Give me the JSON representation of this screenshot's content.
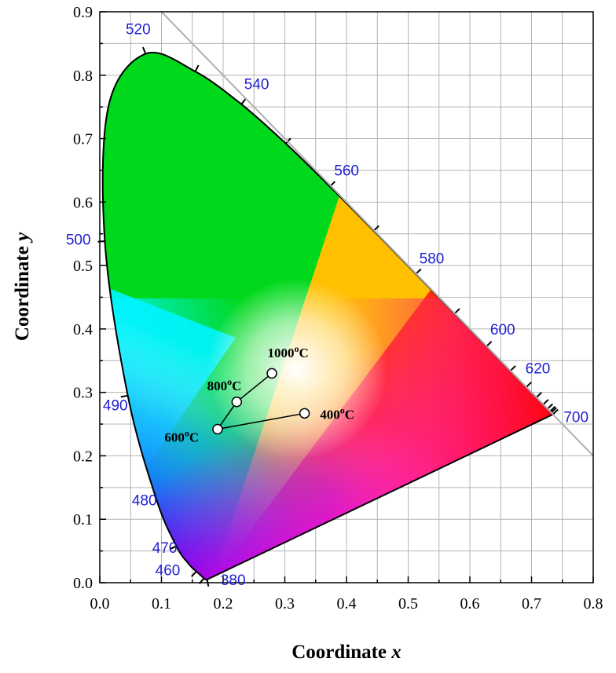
{
  "chart_data": {
    "type": "scatter",
    "title": "",
    "xlabel": "Coordinate",
    "xlabel_var": "x",
    "ylabel": "Coordinate",
    "ylabel_var": "y",
    "xlim": [
      0.0,
      0.8
    ],
    "ylim": [
      0.0,
      0.9
    ],
    "xticks": [
      "0.0",
      "0.1",
      "0.2",
      "0.3",
      "0.4",
      "0.5",
      "0.6",
      "0.7",
      "0.8"
    ],
    "yticks": [
      "0.0",
      "0.1",
      "0.2",
      "0.3",
      "0.4",
      "0.5",
      "0.6",
      "0.7",
      "0.8",
      "0.9"
    ],
    "grid": true,
    "minor_grid_step": 0.05,
    "background_diagram": "CIE 1931 chromaticity diagram",
    "spectral_locus": [
      [
        0.1741,
        0.005
      ],
      [
        0.173,
        0.0048
      ],
      [
        0.1714,
        0.0051
      ],
      [
        0.1689,
        0.0069
      ],
      [
        0.1644,
        0.0109
      ],
      [
        0.1566,
        0.0177
      ],
      [
        0.144,
        0.0297
      ],
      [
        0.1241,
        0.0578
      ],
      [
        0.0913,
        0.1327
      ],
      [
        0.0454,
        0.295
      ],
      [
        0.0082,
        0.5384
      ],
      [
        0.0139,
        0.7502
      ],
      [
        0.0743,
        0.8338
      ],
      [
        0.1547,
        0.8059
      ],
      [
        0.2296,
        0.7543
      ],
      [
        0.3016,
        0.6923
      ],
      [
        0.3731,
        0.6245
      ],
      [
        0.4441,
        0.5547
      ],
      [
        0.5125,
        0.4866
      ],
      [
        0.5752,
        0.4242
      ],
      [
        0.627,
        0.3725
      ],
      [
        0.6658,
        0.334
      ],
      [
        0.6915,
        0.3083
      ],
      [
        0.7079,
        0.292
      ],
      [
        0.719,
        0.2809
      ],
      [
        0.726,
        0.274
      ],
      [
        0.73,
        0.27
      ],
      [
        0.732,
        0.268
      ],
      [
        0.7334,
        0.2666
      ],
      [
        0.7347,
        0.2653
      ]
    ],
    "wavelength_ticks": [
      [
        0.1741,
        0.005
      ],
      [
        0.1689,
        0.0069
      ],
      [
        0.1566,
        0.0177
      ],
      [
        0.1241,
        0.0578
      ],
      [
        0.0454,
        0.295
      ],
      [
        0.0082,
        0.5384
      ],
      [
        0.0743,
        0.8338
      ],
      [
        0.1547,
        0.8059
      ],
      [
        0.2296,
        0.7543
      ],
      [
        0.3016,
        0.6923
      ],
      [
        0.3731,
        0.6245
      ],
      [
        0.4441,
        0.5547
      ],
      [
        0.5125,
        0.4866
      ],
      [
        0.5752,
        0.4242
      ],
      [
        0.627,
        0.3725
      ],
      [
        0.6658,
        0.334
      ],
      [
        0.6915,
        0.3083
      ],
      [
        0.7079,
        0.292
      ],
      [
        0.719,
        0.2809
      ],
      [
        0.726,
        0.274
      ],
      [
        0.73,
        0.27
      ],
      [
        0.732,
        0.268
      ],
      [
        0.7347,
        0.2653
      ]
    ],
    "wavelength_labels": [
      {
        "text": "380",
        "x": 0.196,
        "y": -0.004
      },
      {
        "text": "460",
        "x": 0.09,
        "y": 0.012
      },
      {
        "text": "470",
        "x": 0.085,
        "y": 0.047
      },
      {
        "text": "480",
        "x": 0.052,
        "y": 0.122
      },
      {
        "text": "490",
        "x": 0.005,
        "y": 0.272
      },
      {
        "text": "500",
        "x": -0.055,
        "y": 0.533
      },
      {
        "text": "520",
        "x": 0.042,
        "y": 0.865
      },
      {
        "text": "540",
        "x": 0.234,
        "y": 0.778
      },
      {
        "text": "560",
        "x": 0.38,
        "y": 0.642
      },
      {
        "text": "580",
        "x": 0.518,
        "y": 0.503
      },
      {
        "text": "600",
        "x": 0.633,
        "y": 0.391
      },
      {
        "text": "620",
        "x": 0.69,
        "y": 0.33
      },
      {
        "text": "700",
        "x": 0.752,
        "y": 0.253
      }
    ],
    "purple_boundary_line": [
      [
        0.1,
        0.9
      ],
      [
        0.8,
        0.2
      ]
    ],
    "series": [
      {
        "points": [
          {
            "label": "400°C",
            "x": 0.332,
            "y": 0.267
          },
          {
            "label": "600°C",
            "x": 0.191,
            "y": 0.242
          },
          {
            "label": "800°C",
            "x": 0.222,
            "y": 0.285
          },
          {
            "label": "1000°C",
            "x": 0.279,
            "y": 0.33
          }
        ]
      }
    ],
    "point_labels": [
      {
        "num": "400",
        "sup": "o",
        "unit": "C",
        "x": 0.357,
        "y": 0.258
      },
      {
        "num": "600",
        "sup": "o",
        "unit": "C",
        "x": 0.105,
        "y": 0.222
      },
      {
        "num": "800",
        "sup": "o",
        "unit": "C",
        "x": 0.174,
        "y": 0.303
      },
      {
        "num": "1000",
        "sup": "o",
        "unit": "C",
        "x": 0.272,
        "y": 0.355
      }
    ],
    "colors": {
      "wavelength_label": "#1f1fd0",
      "grid": "#b4b4b4",
      "purple_line": "#b0b0b0",
      "locus_outline": "#000000"
    }
  }
}
